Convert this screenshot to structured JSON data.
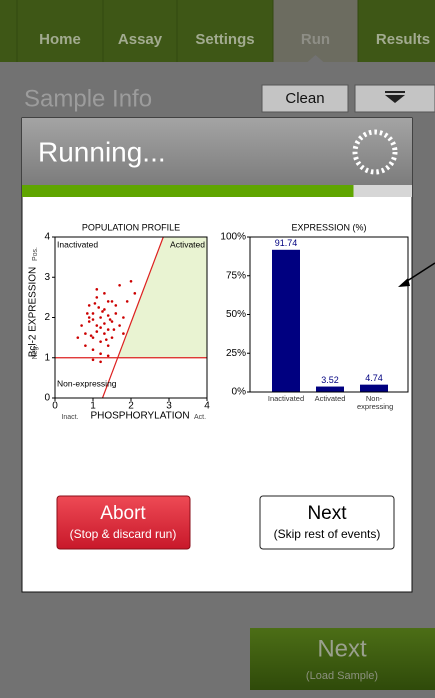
{
  "nav": {
    "tabs": [
      "Home",
      "Assay",
      "Settings",
      "Run",
      "Results"
    ],
    "active": 3
  },
  "header": {
    "title": "Sample Info",
    "clean_button": "Clean"
  },
  "dialog": {
    "title": "Running...",
    "progress": 85
  },
  "abort_button": {
    "label": "Abort",
    "sub": "(Stop & discard run)"
  },
  "next_button": {
    "label": "Next",
    "sub": "(Skip rest of events)"
  },
  "footer_button": {
    "label": "Next",
    "sub": "(Load Sample)"
  },
  "chart_data": [
    {
      "type": "scatter",
      "title": "POPULATION PROFILE",
      "x_label": "PHOSPHORYLATION",
      "x_low_label": "Inact.",
      "x_high_label": "Act.",
      "y_label": "Bcl-2 EXPRESSION",
      "y_low_label": "Neg.",
      "y_high_label": "Pos.",
      "region_labels": [
        "Inactivated",
        "Activated",
        "Non-expressing"
      ],
      "xlim": [
        0,
        4
      ],
      "ylim": [
        0,
        4
      ],
      "xticks": [
        0,
        1,
        2,
        3,
        4
      ],
      "yticks": [
        0,
        1,
        2,
        3,
        4
      ],
      "color": "#cc0000",
      "gate_color": "#dd2020",
      "region_color": "#e9f3d2",
      "threshold": 1,
      "gate_line": {
        "x": [
          1.25,
          2.85
        ],
        "y": [
          0,
          4
        ]
      },
      "x": [
        0.9,
        1.0,
        1.1,
        1.2,
        1.3,
        1.4,
        1.5,
        0.8,
        1.0,
        1.2,
        1.4,
        1.6,
        0.7,
        0.9,
        1.1,
        1.3,
        1.5,
        1.7,
        1.0,
        1.2,
        1.4,
        0.8,
        1.1,
        1.3,
        1.6,
        1.8,
        1.2,
        1.0,
        1.4,
        0.9,
        1.5,
        1.1,
        1.3,
        0.6,
        1.7,
        1.9,
        2.1,
        1.2,
        1.0,
        1.4,
        0.95,
        1.25,
        1.35,
        1.05,
        1.15,
        1.45,
        0.85,
        1.55,
        1.8,
        2.0
      ],
      "values": [
        1.9,
        2.1,
        1.8,
        2.0,
        2.2,
        1.7,
        1.9,
        1.6,
        1.5,
        1.4,
        2.4,
        2.1,
        1.8,
        2.3,
        2.5,
        1.6,
        1.5,
        1.8,
        1.2,
        1.1,
        1.3,
        1.3,
        2.7,
        2.6,
        2.3,
        2.0,
        1.75,
        1.95,
        2.05,
        2.0,
        2.4,
        1.65,
        1.85,
        1.5,
        2.8,
        2.4,
        2.6,
        0.9,
        0.95,
        1.05,
        1.55,
        2.15,
        1.45,
        2.35,
        2.25,
        1.95,
        2.1,
        1.7,
        1.6,
        2.9
      ]
    },
    {
      "type": "bar",
      "title": "EXPRESSION (%)",
      "categories": [
        "Inactivated",
        "Activated",
        "Non-expressing"
      ],
      "values": [
        91.74,
        3.52,
        4.74
      ],
      "color": "#000080",
      "ylim": [
        0,
        100
      ],
      "yticks": [
        {
          "value": 0,
          "label": "0%"
        },
        {
          "value": 25,
          "label": "25%"
        },
        {
          "value": 50,
          "label": "50%"
        },
        {
          "value": 75,
          "label": "75%"
        },
        {
          "value": 100,
          "label": "100%"
        }
      ]
    }
  ]
}
